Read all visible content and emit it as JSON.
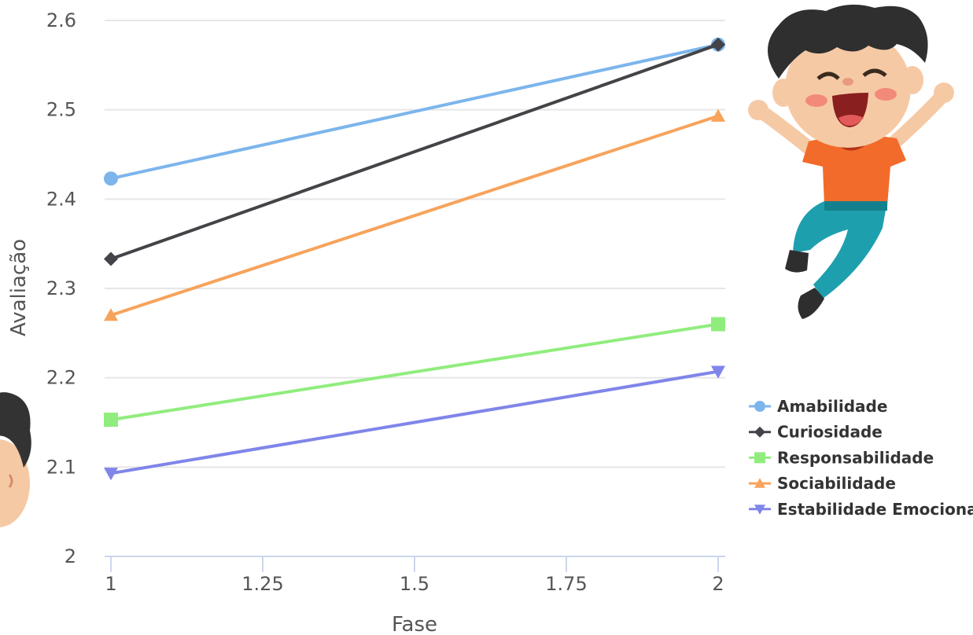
{
  "chart_data": {
    "type": "line",
    "title": "",
    "xlabel": "Fase",
    "ylabel": "Avaliação",
    "xlim": [
      1,
      2
    ],
    "ylim": [
      2,
      2.6
    ],
    "x_ticks": [
      "1",
      "1.25",
      "1.5",
      "1.75",
      "2"
    ],
    "y_ticks": [
      "2",
      "2.1",
      "2.2",
      "2.3",
      "2.4",
      "2.5",
      "2.6"
    ],
    "grid": true,
    "legend_position": "right",
    "x": [
      1,
      2
    ],
    "series": [
      {
        "name": "Amabilidade",
        "values": [
          2.423,
          2.573
        ],
        "color": "#7cb5ec",
        "marker": "circle"
      },
      {
        "name": "Curiosidade",
        "values": [
          2.333,
          2.573
        ],
        "color": "#434348",
        "marker": "diamond"
      },
      {
        "name": "Responsabilidade",
        "values": [
          2.153,
          2.26
        ],
        "color": "#90ed7d",
        "marker": "square"
      },
      {
        "name": "Sociabilidade",
        "values": [
          2.27,
          2.493
        ],
        "color": "#f7a35c",
        "marker": "triangle"
      },
      {
        "name": "Estabilidade Emocional",
        "values": [
          2.093,
          2.207
        ],
        "color": "#8085e9",
        "marker": "triangle-down"
      }
    ]
  },
  "decorations": {
    "main_illustration": "cheerful-jumping-boy",
    "partial_illustration": "boy-face-partial"
  }
}
